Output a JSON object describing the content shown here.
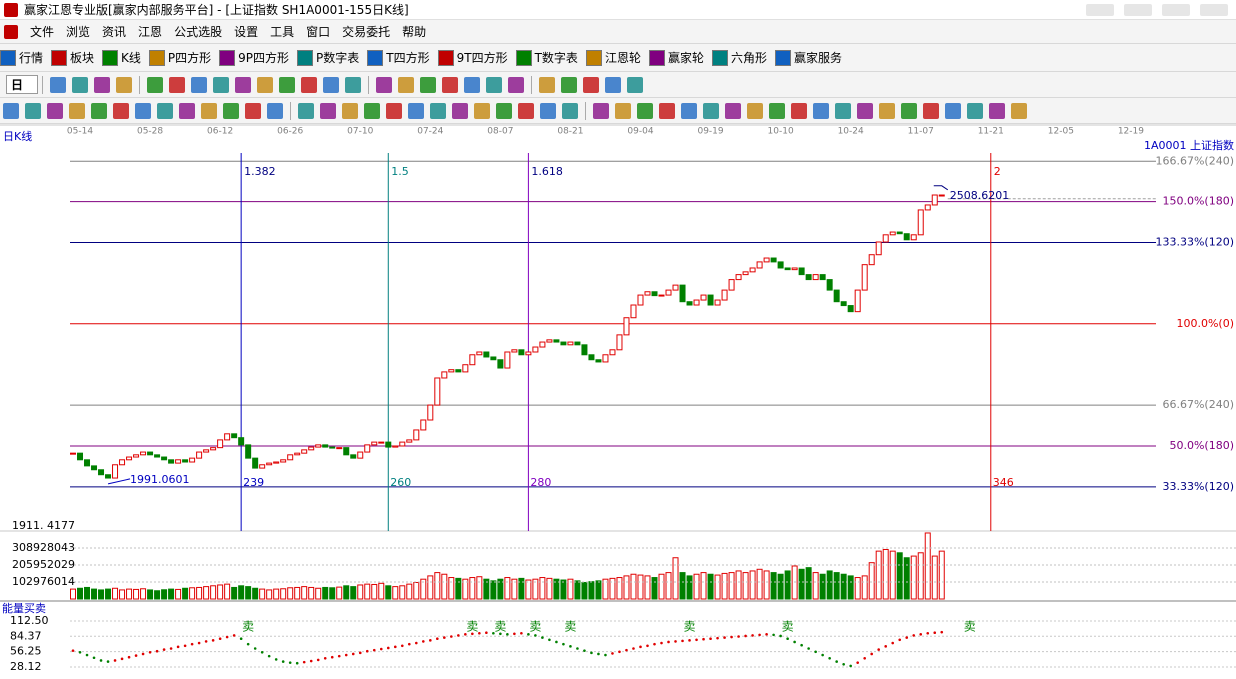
{
  "window": {
    "title": "赢家江恩专业版[赢家内部服务平台] - [上证指数  SH1A0001-155日K线]"
  },
  "menu": [
    "文件",
    "浏览",
    "资讯",
    "江恩",
    "公式选股",
    "设置",
    "工具",
    "窗口",
    "交易委托",
    "帮助"
  ],
  "toolbar": [
    "行情",
    "板块",
    "K线",
    "P四方形",
    "9P四方形",
    "P数字表",
    "T四方形",
    "9T四方形",
    "T数字表",
    "江恩轮",
    "赢家轮",
    "六角形",
    "赢家服务"
  ],
  "period_selector": "日",
  "chart_data": {
    "type": "candlestick",
    "panel_title": "日K线",
    "security": "1A0001 上证指数",
    "xlim": [
      214,
      381
    ],
    "xticks": [
      {
        "value": 216,
        "label": "05-14"
      },
      {
        "value": 226,
        "label": "05-28"
      },
      {
        "value": 236,
        "label": "06-12"
      },
      {
        "value": 246,
        "label": "06-26"
      },
      {
        "value": 256,
        "label": "07-10"
      },
      {
        "value": 266,
        "label": "07-24"
      },
      {
        "value": 276,
        "label": "08-07"
      },
      {
        "value": 286,
        "label": "08-21"
      },
      {
        "value": 296,
        "label": "09-04"
      },
      {
        "value": 306,
        "label": "09-19"
      },
      {
        "value": 316,
        "label": "10-10"
      },
      {
        "value": 326,
        "label": "10-24"
      },
      {
        "value": 336,
        "label": "11-07"
      },
      {
        "value": 346,
        "label": "11-21"
      },
      {
        "value": 356,
        "label": "12-05"
      },
      {
        "value": 366,
        "label": "12-19"
      }
    ],
    "ylim": [
      1904,
      2586
    ],
    "yticks": [
      {
        "value": 1911.4177,
        "label": "1911. 4177"
      }
    ],
    "colors": {
      "up": "#e00000",
      "down": "#008000"
    },
    "x": [
      215,
      216,
      217,
      218,
      219,
      220,
      221,
      222,
      223,
      224,
      225,
      226,
      227,
      228,
      229,
      230,
      231,
      232,
      233,
      234,
      235,
      236,
      237,
      238,
      239,
      240,
      241,
      242,
      243,
      244,
      245,
      246,
      247,
      248,
      249,
      250,
      251,
      252,
      253,
      254,
      255,
      256,
      257,
      258,
      259,
      260,
      261,
      262,
      263,
      264,
      265,
      266,
      267,
      268,
      269,
      270,
      271,
      272,
      273,
      274,
      275,
      276,
      277,
      278,
      279,
      280,
      281,
      282,
      283,
      284,
      285,
      286,
      287,
      288,
      289,
      290,
      291,
      292,
      293,
      294,
      295,
      296,
      297,
      298,
      299,
      300,
      301,
      302,
      303,
      304,
      305,
      306,
      307,
      308,
      309,
      310,
      311,
      312,
      313,
      314,
      315,
      316,
      317,
      318,
      319,
      320,
      321,
      322,
      323,
      324,
      325,
      326,
      327,
      328,
      329,
      330,
      331,
      332,
      333,
      334,
      335,
      336,
      337,
      338,
      339
    ],
    "close": [
      2043,
      2031,
      2020,
      2013,
      2004,
      1998,
      2022,
      2031,
      2036,
      2040,
      2045,
      2040,
      2036,
      2031,
      2025,
      2031,
      2027,
      2034,
      2045,
      2049,
      2053,
      2067,
      2078,
      2071,
      2058,
      2034,
      2016,
      2022,
      2025,
      2027,
      2031,
      2040,
      2043,
      2049,
      2054,
      2058,
      2054,
      2053,
      2053,
      2040,
      2034,
      2045,
      2058,
      2063,
      2063,
      2054,
      2056,
      2063,
      2067,
      2085,
      2103,
      2130,
      2179,
      2190,
      2194,
      2190,
      2203,
      2221,
      2226,
      2217,
      2212,
      2197,
      2226,
      2230,
      2221,
      2226,
      2235,
      2244,
      2248,
      2244,
      2239,
      2244,
      2239,
      2221,
      2212,
      2208,
      2221,
      2230,
      2257,
      2288,
      2311,
      2329,
      2335,
      2328,
      2329,
      2338,
      2347,
      2317,
      2311,
      2320,
      2329,
      2311,
      2320,
      2338,
      2357,
      2366,
      2371,
      2378,
      2389,
      2396,
      2389,
      2378,
      2375,
      2378,
      2366,
      2357,
      2366,
      2357,
      2338,
      2317,
      2310,
      2299,
      2338,
      2384,
      2402,
      2425,
      2438,
      2443,
      2440,
      2429,
      2438,
      2483,
      2492,
      2510,
      2510
    ],
    "fib_price_levels": [
      {
        "value": 2571,
        "label": "166.67%(240)",
        "color": "#808080"
      },
      {
        "value": 2498,
        "label": "150.0%(180)",
        "color": "#800080"
      },
      {
        "value": 2424,
        "label": "133.33%(120)",
        "color": "#000080"
      },
      {
        "value": 2277,
        "label": "100.0%(0)",
        "color": "#e00000"
      },
      {
        "value": 2130,
        "label": "66.67%(240)",
        "color": "#808080"
      },
      {
        "value": 2056,
        "label": "50.0%(180)",
        "color": "#800080"
      },
      {
        "value": 1982,
        "label": "33.33%(120)",
        "color": "#000080"
      }
    ],
    "fib_time_lines": [
      {
        "ratio": 1.382,
        "bar": 239,
        "color": "#0000c0"
      },
      {
        "ratio": 1.5,
        "bar": 260,
        "color": "#008080"
      },
      {
        "ratio": 1.618,
        "bar": 280,
        "color": "#8000c0"
      },
      {
        "ratio": 2,
        "bar": 346,
        "color": "#e00000"
      }
    ],
    "high_mark": {
      "value": 2508.6201,
      "bar": 339
    },
    "low_mark": {
      "value": 1991.0601,
      "bar": 220
    },
    "volume": {
      "values": [
        60000000.0,
        65000000.0,
        70000000.0,
        60000000.0,
        55000000.0,
        60000000.0,
        65000000.0,
        55000000.0,
        60000000.0,
        58000000.0,
        62000000.0,
        55000000.0,
        50000000.0,
        56000000.0,
        60000000.0,
        58000000.0,
        65000000.0,
        68000000.0,
        70000000.0,
        75000000.0,
        80000000.0,
        85000000.0,
        90000000.0,
        70000000.0,
        80000000.0,
        75000000.0,
        65000000.0,
        60000000.0,
        55000000.0,
        60000000.0,
        62000000.0,
        68000000.0,
        70000000.0,
        75000000.0,
        70000000.0,
        65000000.0,
        70000000.0,
        68000000.0,
        72000000.0,
        80000000.0,
        75000000.0,
        85000000.0,
        90000000.0,
        88000000.0,
        95000000.0,
        80000000.0,
        75000000.0,
        80000000.0,
        90000000.0,
        100000000.0,
        120000000.0,
        140000000.0,
        160000000.0,
        150000000.0,
        130000000.0,
        125000000.0,
        120000000.0,
        130000000.0,
        135000000.0,
        120000000.0,
        110000000.0,
        120000000.0,
        130000000.0,
        120000000.0,
        125000000.0,
        115000000.0,
        120000000.0,
        130000000.0,
        125000000.0,
        120000000.0,
        115000000.0,
        120000000.0,
        110000000.0,
        100000000.0,
        105000000.0,
        110000000.0,
        120000000.0,
        125000000.0,
        130000000.0,
        140000000.0,
        150000000.0,
        145000000.0,
        140000000.0,
        130000000.0,
        150000000.0,
        160000000.0,
        250000000.0,
        160000000.0,
        140000000.0,
        150000000.0,
        160000000.0,
        150000000.0,
        145000000.0,
        155000000.0,
        160000000.0,
        170000000.0,
        160000000.0,
        170000000.0,
        180000000.0,
        170000000.0,
        160000000.0,
        150000000.0,
        170000000.0,
        200000000.0,
        180000000.0,
        190000000.0,
        160000000.0,
        150000000.0,
        170000000.0,
        160000000.0,
        150000000.0,
        140000000.0,
        130000000.0,
        140000000.0,
        220000000.0,
        290000000.0,
        300000000.0,
        290000000.0,
        280000000.0,
        250000000.0,
        260000000.0,
        280000000.0,
        400000000.0,
        260000000.0,
        290000000.0
      ],
      "ylim": [
        0,
        412000000
      ],
      "yticks": [
        102976014,
        205952029,
        308928043
      ]
    },
    "indicator": {
      "title": "能量买卖",
      "values": [
        58,
        55,
        50,
        45,
        40,
        38,
        40,
        43,
        46,
        49,
        52,
        55,
        57,
        60,
        62,
        65,
        67,
        70,
        72,
        75,
        77,
        80,
        83,
        86,
        80,
        70,
        62,
        55,
        48,
        42,
        38,
        36,
        35,
        37,
        39,
        41,
        44,
        46,
        48,
        50,
        52,
        54,
        57,
        59,
        61,
        63,
        65,
        67,
        70,
        72,
        75,
        77,
        80,
        82,
        84,
        86,
        88,
        89,
        90,
        91,
        90,
        89,
        88,
        89,
        90,
        88,
        86,
        82,
        78,
        74,
        70,
        66,
        62,
        58,
        54,
        52,
        50,
        53,
        56,
        59,
        62,
        65,
        67,
        70,
        72,
        74,
        75,
        76,
        77,
        78,
        79,
        80,
        81,
        82,
        83,
        84,
        85,
        86,
        87,
        88,
        87,
        85,
        80,
        74,
        68,
        62,
        56,
        50,
        44,
        38,
        33,
        30,
        36,
        44,
        52,
        60,
        66,
        72,
        78,
        82,
        86,
        88,
        90,
        91,
        92
      ],
      "ylim": [
        6,
        129
      ],
      "yticks": [
        {
          "value": 112.5,
          "label": "112.50"
        },
        84.37,
        56.25,
        28.12
      ],
      "signals": [
        {
          "bar": 240,
          "label": "卖"
        },
        {
          "bar": 272,
          "label": "卖"
        },
        {
          "bar": 276,
          "label": "卖"
        },
        {
          "bar": 281,
          "label": "卖"
        },
        {
          "bar": 286,
          "label": "卖"
        },
        {
          "bar": 303,
          "label": "卖"
        },
        {
          "bar": 317,
          "label": "卖"
        },
        {
          "bar": 343,
          "label": "卖"
        }
      ]
    }
  }
}
